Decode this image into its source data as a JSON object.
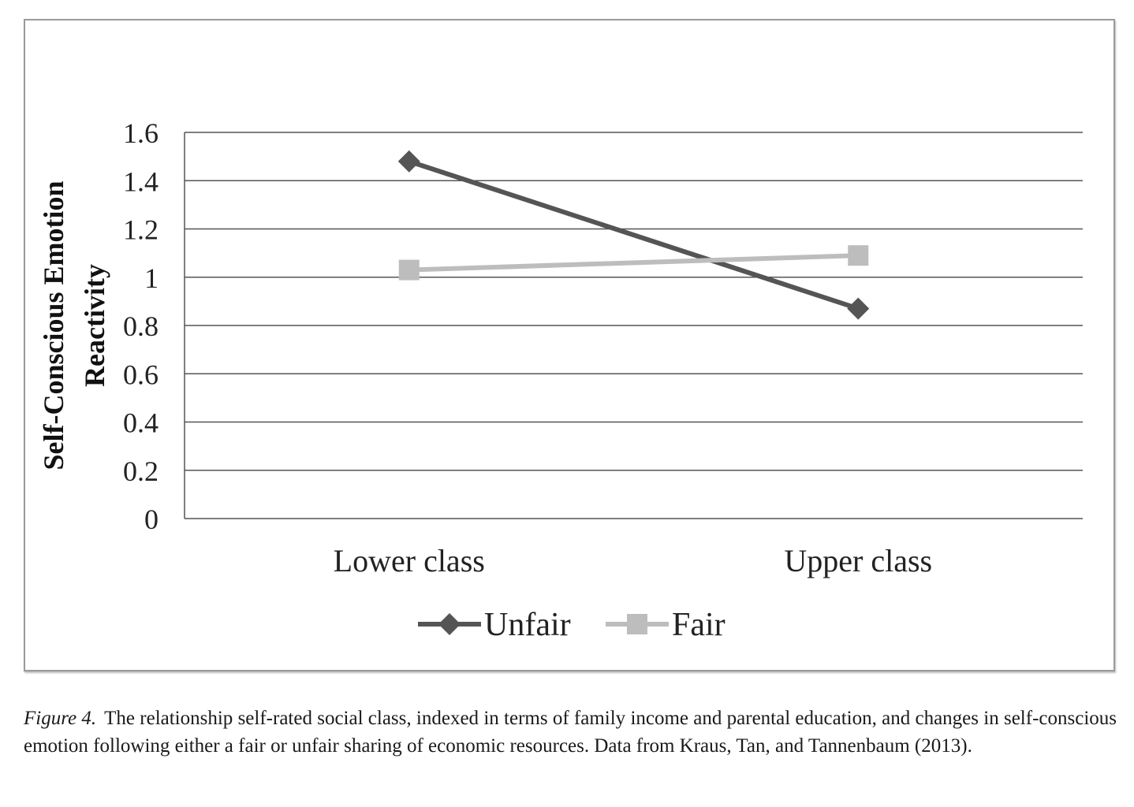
{
  "chart_data": {
    "type": "line",
    "categories": [
      "Lower class",
      "Upper class"
    ],
    "series": [
      {
        "name": "Unfair",
        "values": [
          1.48,
          0.87
        ],
        "color": "#555555",
        "marker": "diamond"
      },
      {
        "name": "Fair",
        "values": [
          1.03,
          1.09
        ],
        "color": "#bdbdbd",
        "marker": "square"
      }
    ],
    "ylabel_line1": "Self-Conscious Emotion",
    "ylabel_line2": "Reactivity",
    "ylim": [
      0,
      1.6
    ],
    "yticks": [
      "0",
      "0.2",
      "0.4",
      "0.6",
      "0.8",
      "1",
      "1.2",
      "1.4",
      "1.6"
    ],
    "grid": true,
    "legend_position": "bottom"
  },
  "caption": {
    "label": "Figure 4.",
    "text": "The relationship self-rated social class, indexed in terms of family income and parental education, and changes in self-conscious emotion following either a fair or unfair sharing of economic resources. Data from Kraus, Tan, and Tannenbaum (2013)."
  }
}
